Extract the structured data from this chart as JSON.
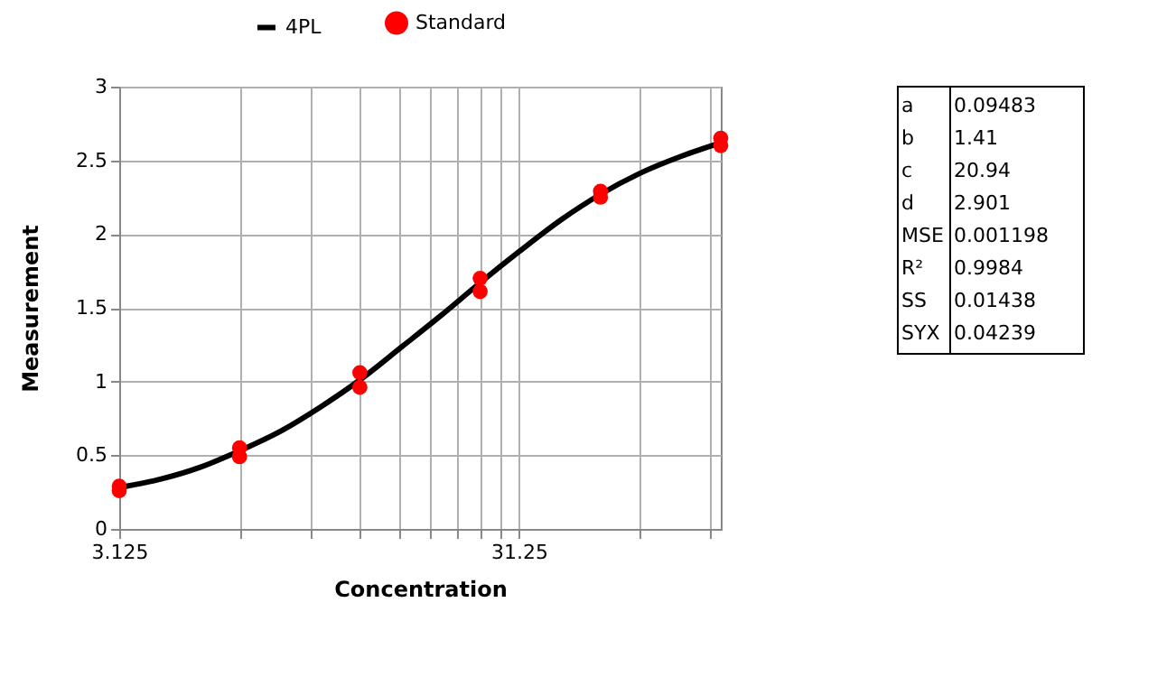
{
  "chart_data": {
    "type": "scatter",
    "xlabel": "Concentration",
    "ylabel": "Measurement",
    "log": "x",
    "xlim": [
      3.125,
      100
    ],
    "ylim": [
      0,
      3
    ],
    "xticks": [
      3.125,
      {
        "value": 6.25,
        "label": null
      },
      {
        "value": 9.375,
        "label": null
      },
      {
        "value": 12.5,
        "label": null
      },
      {
        "value": 15.625,
        "label": null
      },
      {
        "value": 18.75,
        "label": null
      },
      {
        "value": 21.875,
        "label": null
      },
      {
        "value": 25,
        "label": null
      },
      {
        "value": 28.125,
        "label": null
      },
      31.25,
      {
        "value": 62.5,
        "label": null
      },
      {
        "value": 93.75,
        "label": null
      }
    ],
    "yticks": [
      0,
      0.5,
      1,
      1.5,
      2,
      2.5,
      3
    ],
    "grid": true,
    "legend": "top",
    "series": [
      {
        "name": "4PL",
        "type": "line",
        "color": "#000000",
        "marker": "none",
        "line_style": "solid",
        "x": [
          3.125,
          4,
          5,
          6.25,
          8,
          10,
          12.5,
          16,
          20,
          25,
          31.25,
          40,
          50,
          62.5,
          80,
          100
        ],
        "values": [
          0.28,
          0.34,
          0.42,
          0.53,
          0.67,
          0.83,
          1.01,
          1.24,
          1.45,
          1.67,
          1.88,
          2.1,
          2.27,
          2.41,
          2.53,
          2.62
        ]
      },
      {
        "name": "Standard",
        "type": "scatter",
        "color": "#ff0000",
        "marker": "circle",
        "x": [
          3.125,
          3.125,
          6.25,
          6.25,
          12.5,
          12.5,
          25,
          25,
          50,
          50,
          100,
          100
        ],
        "values": [
          0.29,
          0.26,
          0.55,
          0.49,
          1.06,
          0.96,
          1.7,
          1.61,
          2.29,
          2.25,
          2.65,
          2.6
        ]
      }
    ],
    "annotations": [
      "a 0.09483",
      "b 1.41",
      "c 20.94",
      "d 2.901",
      "MSE 0.001198",
      "R² 0.9984",
      "SS 0.01438",
      "SYX 0.04239"
    ]
  }
}
